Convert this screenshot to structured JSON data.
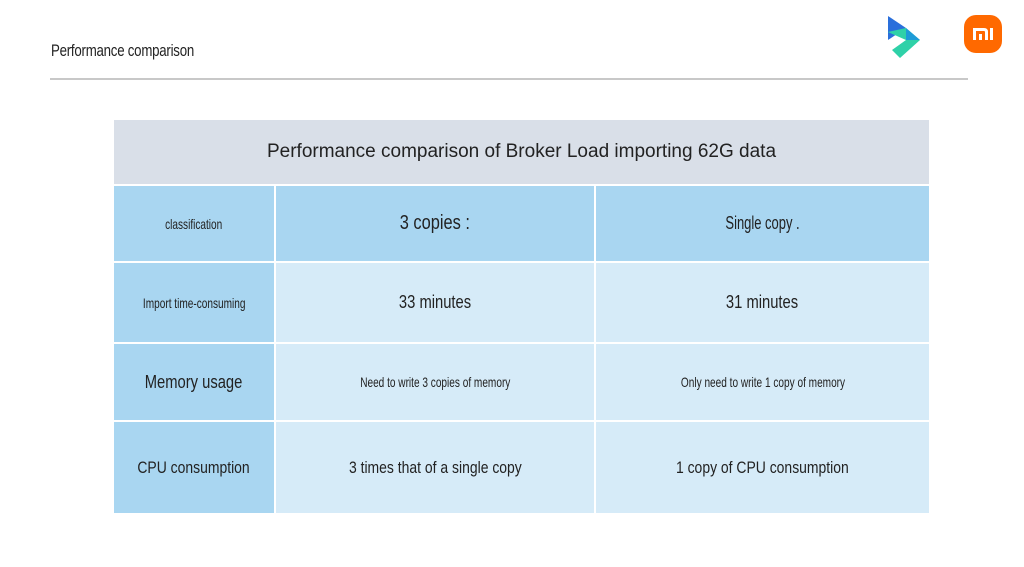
{
  "slide": {
    "title": "Performance comparison"
  },
  "table": {
    "title": "Performance comparison of Broker Load importing 62G data",
    "columns": [
      "classification",
      "3 copies :",
      "Single copy ."
    ],
    "rows": [
      [
        "Import time-consuming",
        "33 minutes",
        "31 minutes"
      ],
      [
        "Memory usage",
        "Need to write 3 copies of memory",
        "Only need to write 1 copy of memory"
      ],
      [
        "CPU consumption",
        "3 times that of a single copy",
        "1 copy of CPU consumption"
      ]
    ]
  },
  "icons": {
    "doris_logo": "doris-logo-icon",
    "mi_logo": "xiaomi-logo-icon"
  },
  "colors": {
    "header_bg": "#d9dfe8",
    "dark_cell": "#a9d6f1",
    "light_cell": "#d6ebf8",
    "mi_orange": "#ff6900"
  }
}
